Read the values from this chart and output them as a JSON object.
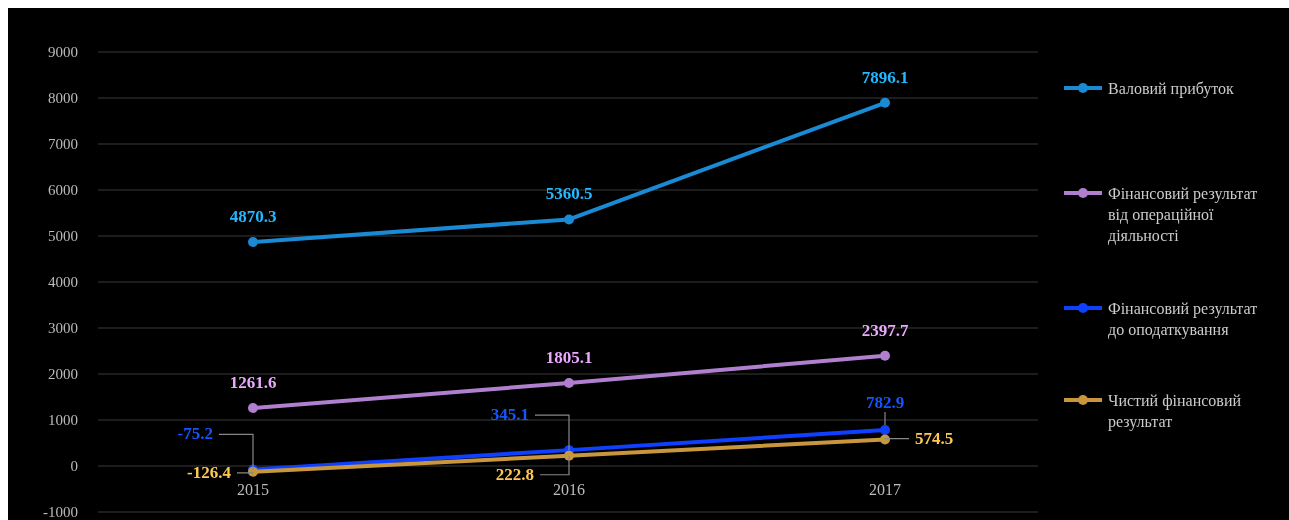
{
  "chart_data": {
    "type": "line",
    "categories": [
      "2015",
      "2016",
      "2017"
    ],
    "series": [
      {
        "name": "Валовий прибуток",
        "color": "#1a8ad4",
        "values": [
          4870.3,
          5360.5,
          7896.1
        ]
      },
      {
        "name": "Фінансовий результат від операційної діяльності",
        "color": "#b07fd0",
        "values": [
          1261.6,
          1805.1,
          2397.7
        ]
      },
      {
        "name": "Фінансовий результат до оподаткування",
        "color": "#1040ff",
        "values": [
          -75.2,
          345.1,
          782.9
        ]
      },
      {
        "name": "Чистий фінансовий результат",
        "color": "#c8963c",
        "values": [
          -126.4,
          222.8,
          574.5
        ]
      }
    ],
    "ylim": [
      -1000,
      9000
    ],
    "yticks": [
      -1000,
      0,
      1000,
      2000,
      3000,
      4000,
      5000,
      6000,
      7000,
      8000,
      9000
    ],
    "grid": "y",
    "legend": "right",
    "marker": "circle",
    "data_labels": true
  }
}
